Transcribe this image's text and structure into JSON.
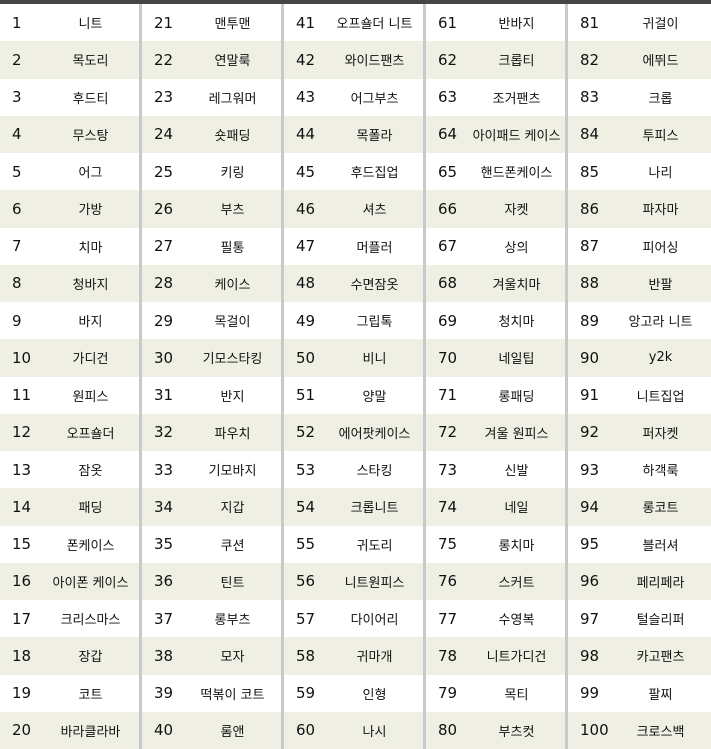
{
  "stripe_color": "#efefe3",
  "columns": [
    {
      "items": [
        {
          "rank": "1",
          "keyword": "니트"
        },
        {
          "rank": "2",
          "keyword": "목도리"
        },
        {
          "rank": "3",
          "keyword": "후드티"
        },
        {
          "rank": "4",
          "keyword": "무스탕"
        },
        {
          "rank": "5",
          "keyword": "어그"
        },
        {
          "rank": "6",
          "keyword": "가방"
        },
        {
          "rank": "7",
          "keyword": "치마"
        },
        {
          "rank": "8",
          "keyword": "청바지"
        },
        {
          "rank": "9",
          "keyword": "바지"
        },
        {
          "rank": "10",
          "keyword": "가디건"
        },
        {
          "rank": "11",
          "keyword": "원피스"
        },
        {
          "rank": "12",
          "keyword": "오프숄더"
        },
        {
          "rank": "13",
          "keyword": "잠옷"
        },
        {
          "rank": "14",
          "keyword": "패딩"
        },
        {
          "rank": "15",
          "keyword": "폰케이스"
        },
        {
          "rank": "16",
          "keyword": "아이폰 케이스"
        },
        {
          "rank": "17",
          "keyword": "크리스마스"
        },
        {
          "rank": "18",
          "keyword": "장갑"
        },
        {
          "rank": "19",
          "keyword": "코트"
        },
        {
          "rank": "20",
          "keyword": "바라클라바"
        }
      ]
    },
    {
      "items": [
        {
          "rank": "21",
          "keyword": "맨투맨"
        },
        {
          "rank": "22",
          "keyword": "연말룩"
        },
        {
          "rank": "23",
          "keyword": "레그워머"
        },
        {
          "rank": "24",
          "keyword": "숏패딩"
        },
        {
          "rank": "25",
          "keyword": "키링"
        },
        {
          "rank": "26",
          "keyword": "부츠"
        },
        {
          "rank": "27",
          "keyword": "필통"
        },
        {
          "rank": "28",
          "keyword": "케이스"
        },
        {
          "rank": "29",
          "keyword": "목걸이"
        },
        {
          "rank": "30",
          "keyword": "기모스타킹"
        },
        {
          "rank": "31",
          "keyword": "반지"
        },
        {
          "rank": "32",
          "keyword": "파우치"
        },
        {
          "rank": "33",
          "keyword": "기모바지"
        },
        {
          "rank": "34",
          "keyword": "지갑"
        },
        {
          "rank": "35",
          "keyword": "쿠션"
        },
        {
          "rank": "36",
          "keyword": "틴트"
        },
        {
          "rank": "37",
          "keyword": "롱부츠"
        },
        {
          "rank": "38",
          "keyword": "모자"
        },
        {
          "rank": "39",
          "keyword": "떡볶이 코트"
        },
        {
          "rank": "40",
          "keyword": "롬앤"
        }
      ]
    },
    {
      "items": [
        {
          "rank": "41",
          "keyword": "오프숄더 니트"
        },
        {
          "rank": "42",
          "keyword": "와이드팬츠"
        },
        {
          "rank": "43",
          "keyword": "어그부츠"
        },
        {
          "rank": "44",
          "keyword": "목폴라"
        },
        {
          "rank": "45",
          "keyword": "후드집업"
        },
        {
          "rank": "46",
          "keyword": "셔츠"
        },
        {
          "rank": "47",
          "keyword": "머플러"
        },
        {
          "rank": "48",
          "keyword": "수면잠옷"
        },
        {
          "rank": "49",
          "keyword": "그립톡"
        },
        {
          "rank": "50",
          "keyword": "비니"
        },
        {
          "rank": "51",
          "keyword": "양말"
        },
        {
          "rank": "52",
          "keyword": "에어팟케이스"
        },
        {
          "rank": "53",
          "keyword": "스타킹"
        },
        {
          "rank": "54",
          "keyword": "크롭니트"
        },
        {
          "rank": "55",
          "keyword": "귀도리"
        },
        {
          "rank": "56",
          "keyword": "니트원피스"
        },
        {
          "rank": "57",
          "keyword": "다이어리"
        },
        {
          "rank": "58",
          "keyword": "귀마개"
        },
        {
          "rank": "59",
          "keyword": "인형"
        },
        {
          "rank": "60",
          "keyword": "나시"
        }
      ]
    },
    {
      "items": [
        {
          "rank": "61",
          "keyword": "반바지"
        },
        {
          "rank": "62",
          "keyword": "크롭티"
        },
        {
          "rank": "63",
          "keyword": "조거팬츠"
        },
        {
          "rank": "64",
          "keyword": "아이패드 케이스"
        },
        {
          "rank": "65",
          "keyword": "핸드폰케이스"
        },
        {
          "rank": "66",
          "keyword": "자켓"
        },
        {
          "rank": "67",
          "keyword": "상의"
        },
        {
          "rank": "68",
          "keyword": "겨울치마"
        },
        {
          "rank": "69",
          "keyword": "청치마"
        },
        {
          "rank": "70",
          "keyword": "네일팁"
        },
        {
          "rank": "71",
          "keyword": "롱패딩"
        },
        {
          "rank": "72",
          "keyword": "겨울 원피스"
        },
        {
          "rank": "73",
          "keyword": "신발"
        },
        {
          "rank": "74",
          "keyword": "네일"
        },
        {
          "rank": "75",
          "keyword": "롱치마"
        },
        {
          "rank": "76",
          "keyword": "스커트"
        },
        {
          "rank": "77",
          "keyword": "수영복"
        },
        {
          "rank": "78",
          "keyword": "니트가디건"
        },
        {
          "rank": "79",
          "keyword": "목티"
        },
        {
          "rank": "80",
          "keyword": "부츠컷"
        }
      ]
    },
    {
      "items": [
        {
          "rank": "81",
          "keyword": "귀걸이"
        },
        {
          "rank": "82",
          "keyword": "에뛰드"
        },
        {
          "rank": "83",
          "keyword": "크롭"
        },
        {
          "rank": "84",
          "keyword": "투피스"
        },
        {
          "rank": "85",
          "keyword": "나리"
        },
        {
          "rank": "86",
          "keyword": "파자마"
        },
        {
          "rank": "87",
          "keyword": "피어싱"
        },
        {
          "rank": "88",
          "keyword": "반팔"
        },
        {
          "rank": "89",
          "keyword": "앙고라 니트"
        },
        {
          "rank": "90",
          "keyword": "y2k"
        },
        {
          "rank": "91",
          "keyword": "니트집업"
        },
        {
          "rank": "92",
          "keyword": "퍼자켓"
        },
        {
          "rank": "93",
          "keyword": "하객룩"
        },
        {
          "rank": "94",
          "keyword": "롱코트"
        },
        {
          "rank": "95",
          "keyword": "블러셔"
        },
        {
          "rank": "96",
          "keyword": "페리페라"
        },
        {
          "rank": "97",
          "keyword": "털슬리퍼"
        },
        {
          "rank": "98",
          "keyword": "카고팬츠"
        },
        {
          "rank": "99",
          "keyword": "팔찌"
        },
        {
          "rank": "100",
          "keyword": "크로스백"
        }
      ]
    }
  ]
}
